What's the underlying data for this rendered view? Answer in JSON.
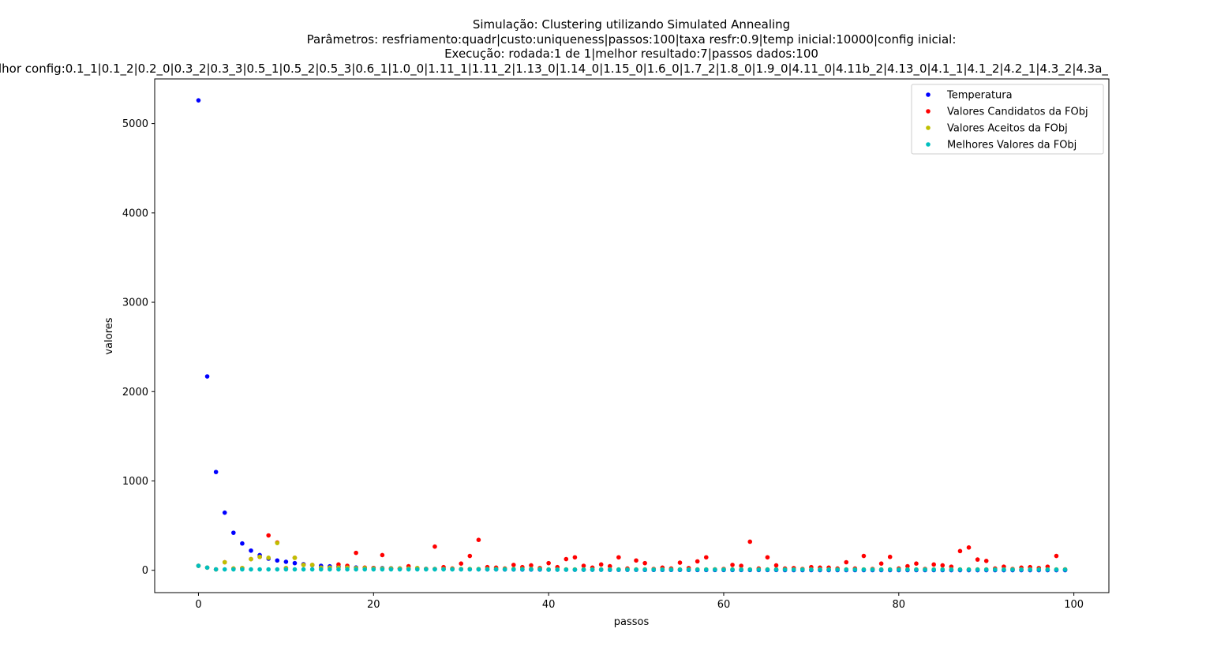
{
  "chart_data": {
    "type": "scatter",
    "title_lines": [
      "Simulação: Clustering utilizando Simulated Annealing",
      "Parâmetros: resfriamento:quadr|custo:uniqueness|passos:100|taxa resfr:0.9|temp inicial:10000|config inicial:",
      "Execução: rodada:1 de 1|melhor resultado:7|passos dados:100",
      "lhor config:0.1_1|0.1_2|0.2_0|0.3_2|0.3_3|0.5_1|0.5_2|0.5_3|0.6_1|1.0_0|1.11_1|1.11_2|1.13_0|1.14_0|1.15_0|1.6_0|1.7_2|1.8_0|1.9_0|4.11_0|4.11b_2|4.13_0|4.1_1|4.1_2|4.2_1|4.3_2|4.3a_"
    ],
    "xlabel": "passos",
    "ylabel": "valores",
    "xlim": [
      -5,
      104
    ],
    "ylim": [
      -250,
      5500
    ],
    "xticks": [
      0,
      20,
      40,
      60,
      80,
      100
    ],
    "yticks": [
      0,
      1000,
      2000,
      3000,
      4000,
      5000
    ],
    "legend_position": "top-right",
    "grid": false,
    "series": [
      {
        "name": "Temperatura",
        "color": "#0000ff",
        "x": [
          0,
          1,
          2,
          3,
          4,
          5,
          6,
          7,
          8,
          9,
          10,
          11,
          12,
          13,
          14,
          15,
          16,
          17,
          18,
          19,
          20,
          21,
          22,
          23,
          24,
          25,
          26,
          27,
          28,
          29,
          30,
          31,
          32,
          33,
          34,
          35,
          36,
          37,
          38,
          39,
          40,
          41,
          42,
          43,
          44,
          45,
          46,
          47,
          48,
          49,
          50,
          51,
          52,
          53,
          54,
          55,
          56,
          57,
          58,
          59,
          60,
          61,
          62,
          63,
          64,
          65,
          66,
          67,
          68,
          69,
          70,
          71,
          72,
          73,
          74,
          75,
          76,
          77,
          78,
          79,
          80,
          81,
          82,
          83,
          84,
          85,
          86,
          87,
          88,
          89,
          90,
          91,
          92,
          93,
          94,
          95,
          96,
          97,
          98,
          99
        ],
        "y": [
          5260,
          2170,
          1100,
          645,
          420,
          300,
          220,
          170,
          130,
          110,
          95,
          80,
          68,
          58,
          50,
          44,
          39,
          35,
          31,
          28,
          26,
          24,
          22,
          20,
          19,
          17,
          16,
          15,
          14,
          13,
          12,
          12,
          11,
          10,
          10,
          9,
          9,
          8,
          8,
          8,
          7,
          7,
          7,
          6,
          6,
          6,
          6,
          5,
          5,
          5,
          5,
          4,
          4,
          4,
          4,
          4,
          4,
          3,
          3,
          3,
          3,
          3,
          3,
          3,
          3,
          3,
          3,
          2,
          2,
          2,
          2,
          2,
          2,
          2,
          2,
          2,
          2,
          2,
          2,
          2,
          2,
          2,
          2,
          2,
          2,
          2,
          1,
          1,
          1,
          1,
          1,
          1,
          1,
          1,
          1,
          1,
          1,
          1,
          1,
          1
        ]
      },
      {
        "name": "Valores Candidatos da FObj",
        "color": "#ff0000",
        "x": [
          0,
          1,
          2,
          3,
          4,
          5,
          6,
          7,
          8,
          9,
          10,
          11,
          12,
          13,
          14,
          15,
          16,
          17,
          18,
          19,
          20,
          21,
          22,
          23,
          24,
          25,
          26,
          27,
          28,
          29,
          30,
          31,
          32,
          33,
          34,
          35,
          36,
          37,
          38,
          39,
          40,
          41,
          42,
          43,
          44,
          45,
          46,
          47,
          48,
          49,
          50,
          51,
          52,
          53,
          54,
          55,
          56,
          57,
          58,
          59,
          60,
          61,
          62,
          63,
          64,
          65,
          66,
          67,
          68,
          69,
          70,
          71,
          72,
          73,
          74,
          75,
          76,
          77,
          78,
          79,
          80,
          81,
          82,
          83,
          84,
          85,
          86,
          87,
          88,
          89,
          90,
          91,
          92,
          93,
          94,
          95,
          96,
          97,
          98,
          99
        ],
        "y": [
          50,
          30,
          10,
          90,
          20,
          25,
          125,
          150,
          390,
          310,
          25,
          140,
          60,
          60,
          30,
          30,
          65,
          50,
          195,
          30,
          25,
          170,
          20,
          20,
          45,
          25,
          15,
          265,
          35,
          20,
          75,
          160,
          340,
          35,
          30,
          20,
          60,
          35,
          55,
          25,
          80,
          35,
          125,
          145,
          50,
          30,
          65,
          45,
          145,
          20,
          110,
          80,
          15,
          30,
          20,
          85,
          25,
          100,
          145,
          10,
          15,
          60,
          50,
          320,
          20,
          145,
          55,
          20,
          25,
          15,
          35,
          30,
          30,
          20,
          90,
          20,
          160,
          15,
          75,
          150,
          20,
          45,
          75,
          15,
          65,
          55,
          40,
          215,
          255,
          120,
          105,
          20,
          40,
          15,
          30,
          35,
          25,
          40,
          160,
          10
        ]
      },
      {
        "name": "Valores Aceitos da FObj",
        "color": "#bfbf00",
        "x": [
          0,
          1,
          2,
          3,
          4,
          5,
          6,
          7,
          8,
          9,
          10,
          11,
          12,
          13,
          14,
          15,
          16,
          17,
          18,
          19,
          20,
          21,
          22,
          23,
          24,
          25,
          26,
          27,
          28,
          29,
          30,
          31,
          32,
          33,
          34,
          35,
          36,
          37,
          38,
          39,
          40,
          41,
          42,
          43,
          44,
          45,
          46,
          47,
          48,
          49,
          50,
          51,
          52,
          53,
          54,
          55,
          56,
          57,
          58,
          59,
          60,
          61,
          62,
          63,
          64,
          65,
          66,
          67,
          68,
          69,
          70,
          71,
          72,
          73,
          74,
          75,
          76,
          77,
          78,
          79,
          80,
          81,
          82,
          83,
          84,
          85,
          86,
          87,
          88,
          89,
          90,
          91,
          92,
          93,
          94,
          95,
          96,
          97,
          98,
          99
        ],
        "y": [
          50,
          30,
          10,
          90,
          20,
          25,
          125,
          150,
          140,
          305,
          25,
          140,
          60,
          60,
          30,
          30,
          30,
          30,
          25,
          25,
          20,
          20,
          20,
          20,
          20,
          25,
          15,
          15,
          15,
          15,
          15,
          15,
          15,
          15,
          15,
          15,
          15,
          15,
          15,
          15,
          10,
          10,
          10,
          10,
          10,
          10,
          10,
          10,
          10,
          10,
          10,
          10,
          10,
          10,
          10,
          10,
          10,
          10,
          10,
          10,
          10,
          10,
          10,
          10,
          10,
          10,
          10,
          10,
          10,
          10,
          10,
          10,
          10,
          10,
          10,
          10,
          10,
          10,
          10,
          10,
          10,
          10,
          10,
          10,
          10,
          10,
          10,
          10,
          10,
          10,
          10,
          10,
          10,
          10,
          10,
          10,
          10,
          10,
          10,
          10
        ]
      },
      {
        "name": "Melhores Valores da FObj",
        "color": "#00bfbf",
        "x": [
          0,
          1,
          2,
          3,
          4,
          5,
          6,
          7,
          8,
          9,
          10,
          11,
          12,
          13,
          14,
          15,
          16,
          17,
          18,
          19,
          20,
          21,
          22,
          23,
          24,
          25,
          26,
          27,
          28,
          29,
          30,
          31,
          32,
          33,
          34,
          35,
          36,
          37,
          38,
          39,
          40,
          41,
          42,
          43,
          44,
          45,
          46,
          47,
          48,
          49,
          50,
          51,
          52,
          53,
          54,
          55,
          56,
          57,
          58,
          59,
          60,
          61,
          62,
          63,
          64,
          65,
          66,
          67,
          68,
          69,
          70,
          71,
          72,
          73,
          74,
          75,
          76,
          77,
          78,
          79,
          80,
          81,
          82,
          83,
          84,
          85,
          86,
          87,
          88,
          89,
          90,
          91,
          92,
          93,
          94,
          95,
          96,
          97,
          98,
          99
        ],
        "y": [
          50,
          30,
          10,
          10,
          10,
          10,
          10,
          10,
          10,
          10,
          10,
          10,
          10,
          10,
          10,
          10,
          10,
          10,
          10,
          10,
          10,
          10,
          10,
          10,
          10,
          10,
          10,
          10,
          10,
          10,
          10,
          10,
          10,
          10,
          10,
          10,
          10,
          10,
          10,
          10,
          7,
          7,
          7,
          7,
          7,
          7,
          7,
          7,
          7,
          7,
          7,
          7,
          7,
          7,
          7,
          7,
          7,
          7,
          7,
          7,
          7,
          7,
          7,
          7,
          7,
          7,
          7,
          7,
          7,
          7,
          7,
          7,
          7,
          7,
          7,
          7,
          7,
          7,
          7,
          7,
          7,
          7,
          7,
          7,
          7,
          7,
          7,
          7,
          7,
          7,
          7,
          7,
          7,
          7,
          7,
          7,
          7,
          7,
          7,
          7
        ]
      }
    ]
  }
}
